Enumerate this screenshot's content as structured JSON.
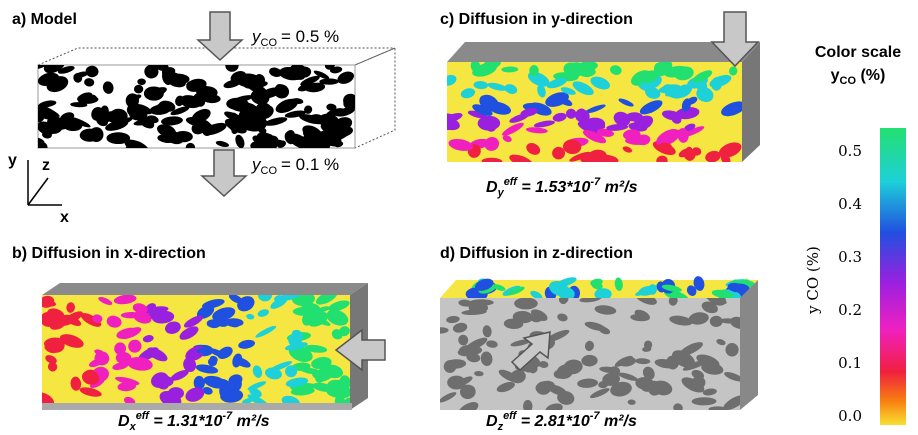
{
  "panels": [
    {
      "title": "a) Model",
      "top_label": {
        "symbol": "y",
        "sub": "CO",
        "text": "= 0.5 %"
      },
      "bottom_label": {
        "symbol": "y",
        "sub": "CO",
        "text": "= 0.1 %"
      },
      "axes": {
        "y": "y",
        "z": "z",
        "x": "x"
      }
    },
    {
      "title": "b) Diffusion in x-direction",
      "equation": {
        "base": "D",
        "sub": "x",
        "sup": "eff",
        "value": " = 1.31*10",
        "exp": "-7",
        "unit": " m²/s"
      }
    },
    {
      "title": "c) Diffusion in y-direction",
      "equation": {
        "base": "D",
        "sub": "y",
        "sup": "eff",
        "value": " = 1.53*10",
        "exp": "-7",
        "unit": " m²/s"
      }
    },
    {
      "title": "d) Diffusion in z-direction",
      "equation": {
        "base": "D",
        "sub": "z",
        "sup": "eff",
        "value": " = 2.81*10",
        "exp": "-7",
        "unit": " m²/s"
      }
    }
  ],
  "color_scale": {
    "title": "Color scale",
    "subtitle": {
      "symbol": "y",
      "sub": "CO",
      "text": " (%)"
    },
    "axis_label": "y CO (%)",
    "ticks": [
      "0.5",
      "0.4",
      "0.3",
      "0.2",
      "0.1",
      "0.0"
    ]
  }
}
